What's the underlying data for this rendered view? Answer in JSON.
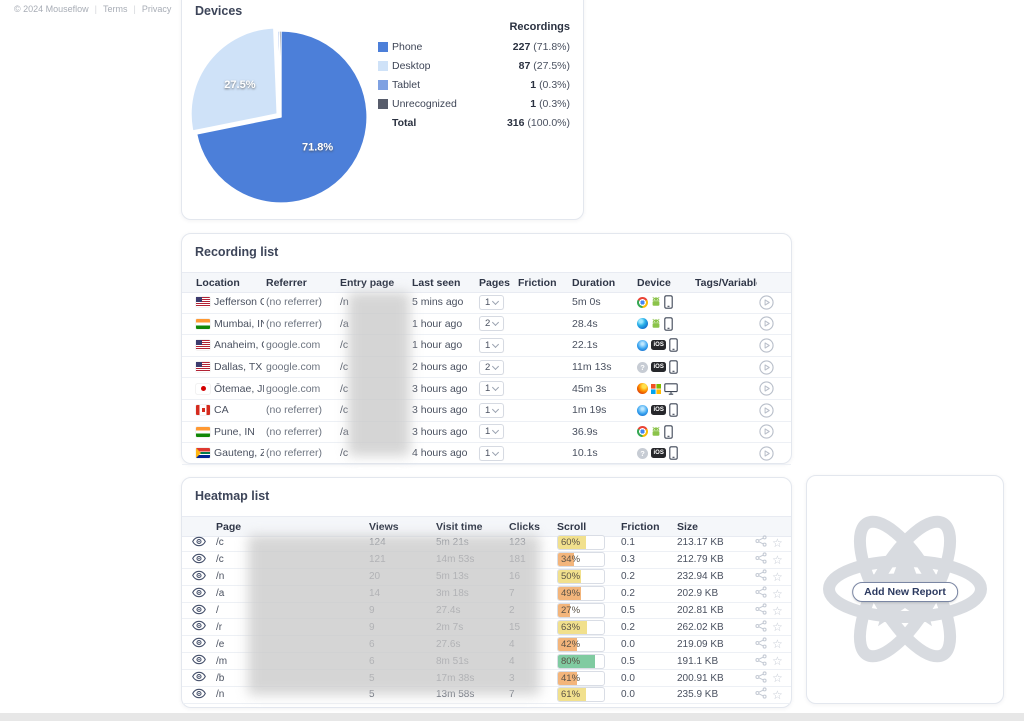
{
  "footer": {
    "copyright": "© 2024 Mouseflow",
    "terms": "Terms",
    "privacy": "Privacy"
  },
  "chart_data": {
    "type": "pie",
    "title": "Devices",
    "legend_header": "Recordings",
    "slices": [
      {
        "label": "Phone",
        "value": 227,
        "pct": "71.8%",
        "color": "#4c7fd9",
        "show_label": true
      },
      {
        "label": "Desktop",
        "value": 87,
        "pct": "27.5%",
        "color": "#cfe2f8",
        "show_label": true,
        "exploded": true
      },
      {
        "label": "Tablet",
        "value": 1,
        "pct": "0.3%",
        "color": "#7fa1e2"
      },
      {
        "label": "Unrecognized",
        "value": 1,
        "pct": "0.3%",
        "color": "#575c6b"
      }
    ],
    "total": {
      "label": "Total",
      "value": 316,
      "pct": "100.0%"
    }
  },
  "devices_panel": {
    "title": "Devices"
  },
  "recording_list": {
    "title": "Recording list",
    "columns": [
      "Location",
      "Referrer",
      "Entry page",
      "Last seen",
      "Pages",
      "Friction",
      "Duration",
      "Device",
      "Tags/Variables"
    ],
    "rows": [
      {
        "flag": "us",
        "location": "Jefferson Ci...",
        "referrer": "(no referrer)",
        "entry": "/n",
        "last_seen": "5 mins ago",
        "pages": "1",
        "duration": "5m 0s",
        "browser": "chrome",
        "os": "android",
        "device": "phone"
      },
      {
        "flag": "in",
        "location": "Mumbai, IN",
        "referrer": "(no referrer)",
        "entry": "/a",
        "last_seen": "1 hour ago",
        "pages": "2",
        "duration": "28.4s",
        "browser": "edge",
        "os": "android",
        "device": "phone"
      },
      {
        "flag": "us",
        "location": "Anaheim, CA",
        "referrer": "google.com",
        "entry": "/c",
        "last_seen": "1 hour ago",
        "pages": "1",
        "duration": "22.1s",
        "browser": "safari",
        "os": "ios",
        "device": "phone"
      },
      {
        "flag": "us",
        "location": "Dallas, TX",
        "referrer": "google.com",
        "entry": "/c",
        "last_seen": "2 hours ago",
        "pages": "2",
        "duration": "11m 13s",
        "browser": "unknown",
        "os": "ios",
        "device": "phone"
      },
      {
        "flag": "jp",
        "location": "Ōtemae, JP",
        "referrer": "google.com",
        "entry": "/c",
        "last_seen": "3 hours ago",
        "pages": "1",
        "duration": "45m 3s",
        "browser": "firefox",
        "os": "windows",
        "device": "desktop"
      },
      {
        "flag": "ca",
        "location": "CA",
        "referrer": "(no referrer)",
        "entry": "/c",
        "last_seen": "3 hours ago",
        "pages": "1",
        "duration": "1m 19s",
        "browser": "safari",
        "os": "ios",
        "device": "phone"
      },
      {
        "flag": "in",
        "location": "Pune, IN",
        "referrer": "(no referrer)",
        "entry": "/a",
        "last_seen": "3 hours ago",
        "pages": "1",
        "duration": "36.9s",
        "browser": "chrome",
        "os": "android",
        "device": "phone"
      },
      {
        "flag": "za",
        "location": "Gauteng, ZA",
        "referrer": "(no referrer)",
        "entry": "/c",
        "last_seen": "4 hours ago",
        "pages": "1",
        "duration": "10.1s",
        "browser": "unknown",
        "os": "ios",
        "device": "phone"
      }
    ]
  },
  "heatmap_list": {
    "title": "Heatmap list",
    "columns": [
      "Page",
      "Views",
      "Visit time",
      "Clicks",
      "Scroll",
      "Friction",
      "Size"
    ],
    "rows": [
      {
        "page": "/c",
        "views": "124",
        "visit_time": "5m 21s",
        "clicks": "123",
        "scroll_pct": 60,
        "scroll_label": "60%",
        "scroll_color": "#f1e08d",
        "friction": "0.1",
        "size": "213.17 KB"
      },
      {
        "page": "/c",
        "views": "121",
        "visit_time": "14m 53s",
        "clicks": "181",
        "scroll_pct": 34,
        "scroll_label": "34%",
        "scroll_color": "#f3b57b",
        "friction": "0.3",
        "size": "212.79 KB"
      },
      {
        "page": "/n",
        "views": "20",
        "visit_time": "5m 13s",
        "clicks": "16",
        "scroll_pct": 50,
        "scroll_label": "50%",
        "scroll_color": "#f1e08d",
        "friction": "0.2",
        "size": "232.94 KB"
      },
      {
        "page": "/a",
        "views": "14",
        "visit_time": "3m 18s",
        "clicks": "7",
        "scroll_pct": 49,
        "scroll_label": "49%",
        "scroll_color": "#f3b57b",
        "friction": "0.2",
        "size": "202.9 KB"
      },
      {
        "page": "/",
        "views": "9",
        "visit_time": "27.4s",
        "clicks": "2",
        "scroll_pct": 27,
        "scroll_label": "27%",
        "scroll_color": "#f3b57b",
        "friction": "0.5",
        "size": "202.81 KB"
      },
      {
        "page": "/r",
        "views": "9",
        "visit_time": "2m 7s",
        "clicks": "15",
        "scroll_pct": 63,
        "scroll_label": "63%",
        "scroll_color": "#f1e08d",
        "friction": "0.2",
        "size": "262.02 KB"
      },
      {
        "page": "/e",
        "views": "6",
        "visit_time": "27.6s",
        "clicks": "4",
        "scroll_pct": 42,
        "scroll_label": "42%",
        "scroll_color": "#f3b57b",
        "friction": "0.0",
        "size": "219.09 KB"
      },
      {
        "page": "/m",
        "views": "6",
        "visit_time": "8m 51s",
        "clicks": "4",
        "scroll_pct": 80,
        "scroll_label": "80%",
        "scroll_color": "#80cba1",
        "friction": "0.5",
        "size": "191.1 KB"
      },
      {
        "page": "/b",
        "views": "5",
        "visit_time": "17m 38s",
        "clicks": "3",
        "scroll_pct": 41,
        "scroll_label": "41%",
        "scroll_color": "#f3b57b",
        "friction": "0.0",
        "size": "200.91 KB"
      },
      {
        "page": "/n",
        "views": "5",
        "visit_time": "13m 58s",
        "clicks": "7",
        "scroll_pct": 61,
        "scroll_label": "61%",
        "scroll_color": "#f1e08d",
        "friction": "0.0",
        "size": "235.9 KB"
      }
    ]
  },
  "add_report": {
    "button_label": "Add New Report"
  }
}
